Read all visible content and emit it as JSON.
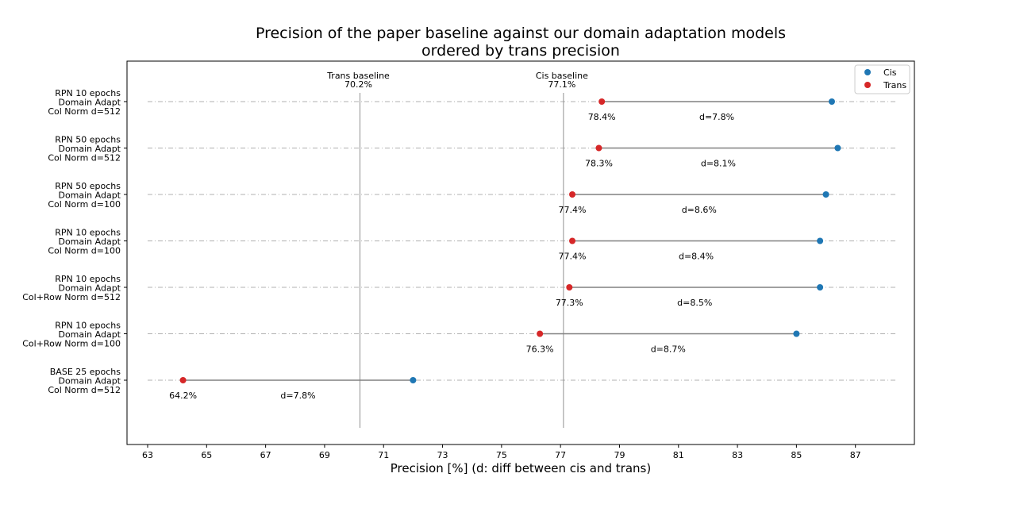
{
  "chart_data": {
    "type": "dumbbell",
    "title_lines": [
      "Precision of the paper baseline against our domain adaptation models",
      "ordered by trans precision"
    ],
    "xlabel": "Precision [%]   (d: diff between cis and trans)",
    "xlim": [
      62.3,
      89.0
    ],
    "xticks": [
      63,
      65,
      67,
      69,
      71,
      73,
      75,
      77,
      79,
      81,
      83,
      85,
      87
    ],
    "colors": {
      "cis": "#1f77b4",
      "trans": "#d62728",
      "connector": "#808080",
      "guide": "#b0b0b0"
    },
    "legend": {
      "position": "top-right",
      "entries": [
        {
          "name": "Cis",
          "color": "#1f77b4"
        },
        {
          "name": "Trans",
          "color": "#d62728"
        }
      ]
    },
    "baselines": [
      {
        "label": "Trans baseline",
        "value_label": "70.2%",
        "x": 70.2
      },
      {
        "label": "Cis baseline",
        "value_label": "77.1%",
        "x": 77.1
      }
    ],
    "rows": [
      {
        "label_lines": [
          "RPN 10 epochs",
          "Domain Adapt",
          "Col Norm d=512"
        ],
        "trans": 78.4,
        "cis": 86.2,
        "trans_label": "78.4%",
        "diff_label": "d=7.8%"
      },
      {
        "label_lines": [
          "RPN 50 epochs",
          "Domain Adapt",
          "Col Norm d=512"
        ],
        "trans": 78.3,
        "cis": 86.4,
        "trans_label": "78.3%",
        "diff_label": "d=8.1%"
      },
      {
        "label_lines": [
          "RPN 50 epochs",
          "Domain Adapt",
          "Col Norm d=100"
        ],
        "trans": 77.4,
        "cis": 86.0,
        "trans_label": "77.4%",
        "diff_label": "d=8.6%"
      },
      {
        "label_lines": [
          "RPN 10 epochs",
          "Domain Adapt",
          "Col Norm d=100"
        ],
        "trans": 77.4,
        "cis": 85.8,
        "trans_label": "77.4%",
        "diff_label": "d=8.4%"
      },
      {
        "label_lines": [
          "RPN 10 epochs",
          "Domain Adapt",
          "Col+Row Norm d=512"
        ],
        "trans": 77.3,
        "cis": 85.8,
        "trans_label": "77.3%",
        "diff_label": "d=8.5%"
      },
      {
        "label_lines": [
          "RPN 10 epochs",
          "Domain Adapt",
          "Col+Row Norm d=100"
        ],
        "trans": 76.3,
        "cis": 85.0,
        "trans_label": "76.3%",
        "diff_label": "d=8.7%"
      },
      {
        "label_lines": [
          "BASE 25 epochs",
          "Domain Adapt",
          "Col Norm d=512"
        ],
        "trans": 64.2,
        "cis": 72.0,
        "trans_label": "64.2%",
        "diff_label": "d=7.8%"
      }
    ]
  }
}
